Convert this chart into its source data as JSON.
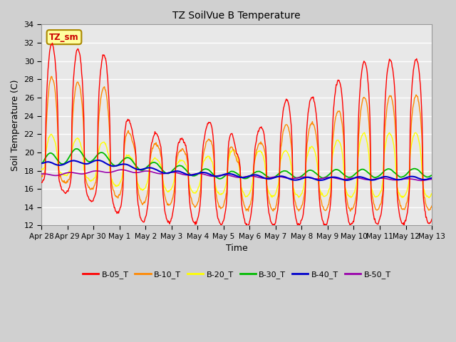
{
  "title": "TZ SoilVue B Temperature",
  "xlabel": "Time",
  "ylabel": "Soil Temperature (C)",
  "ylim": [
    12,
    34
  ],
  "yticks": [
    12,
    14,
    16,
    18,
    20,
    22,
    24,
    26,
    28,
    30,
    32,
    34
  ],
  "fig_facecolor": "#d0d0d0",
  "plot_facecolor": "#e8e8e8",
  "grid_color": "#ffffff",
  "annotation_label": "TZ_sm",
  "annotation_bg": "#ffffa0",
  "annotation_border": "#aa8800",
  "series_colors": {
    "B-05_T": "#ff0000",
    "B-10_T": "#ff8800",
    "B-20_T": "#ffff00",
    "B-30_T": "#00bb00",
    "B-40_T": "#0000cc",
    "B-50_T": "#9900aa"
  },
  "n_points": 720,
  "x_start": 0,
  "x_end": 15,
  "xtick_positions": [
    0,
    1,
    2,
    3,
    4,
    5,
    6,
    7,
    8,
    9,
    10,
    11,
    12,
    13,
    14,
    15
  ],
  "xtick_labels": [
    "Apr 28",
    "Apr 29",
    "Apr 30",
    "May 1",
    "May 2",
    "May 3",
    "May 4",
    "May 5",
    "May 6",
    "May 7",
    "May 8",
    "May 9",
    "May 10",
    "May 11",
    "May 12",
    "May 13"
  ]
}
